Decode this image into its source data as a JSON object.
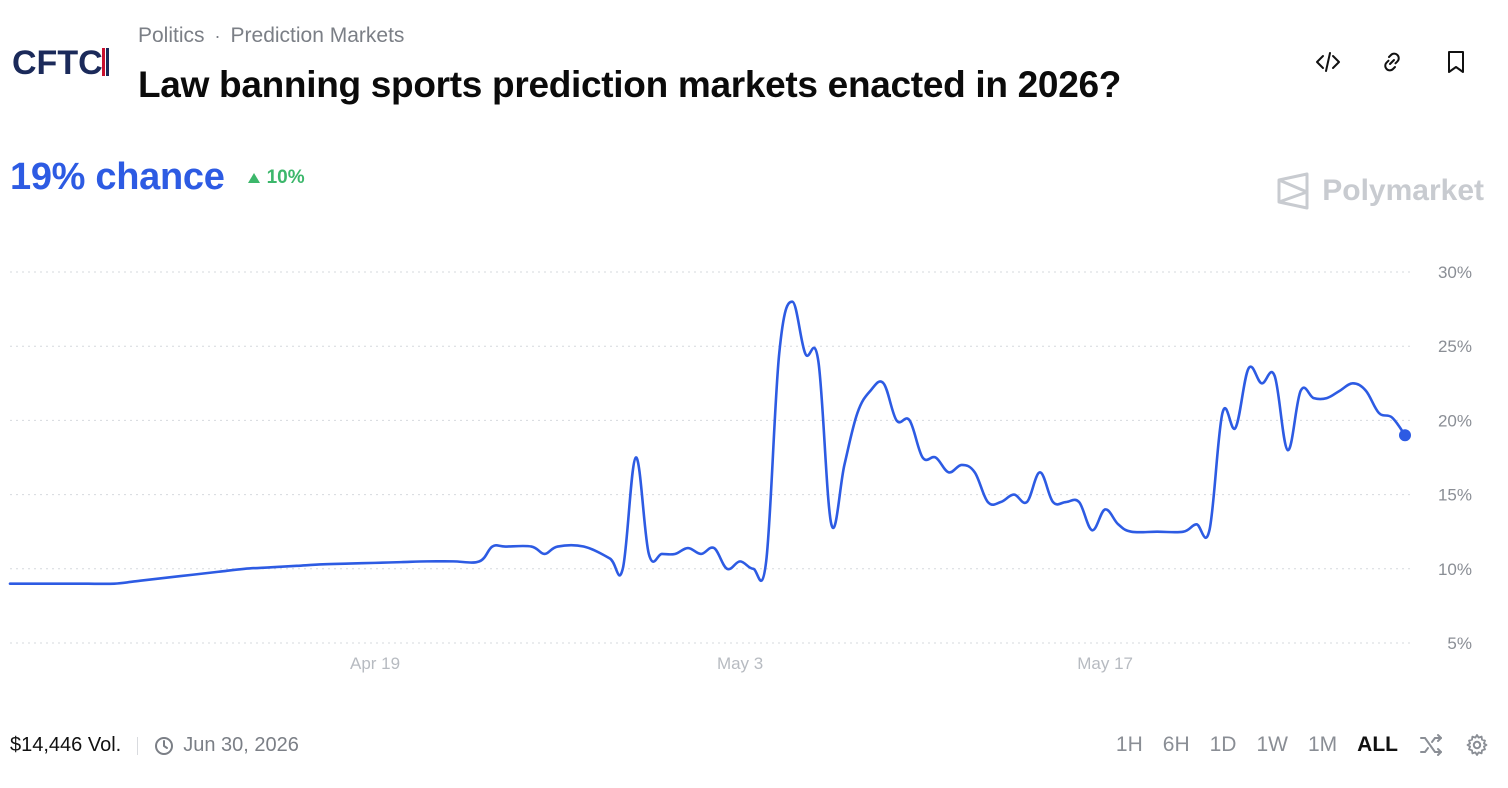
{
  "header": {
    "logo_text": "CFTC",
    "breadcrumb": [
      "Politics",
      "Prediction Markets"
    ],
    "breadcrumb_separator": "·",
    "title": "Law banning sports prediction markets enacted in 2026?",
    "actions": [
      {
        "icon": "embed-code-icon"
      },
      {
        "icon": "link-icon"
      },
      {
        "icon": "bookmark-icon"
      }
    ]
  },
  "summary": {
    "chance_text": "19% chance",
    "delta_text": "10%",
    "delta_direction": "up",
    "accent_color": "#2d5be3",
    "delta_color": "#3cb76b"
  },
  "brand": {
    "name": "Polymarket",
    "icon": "polymarket-logo-icon"
  },
  "chart_data": {
    "type": "line",
    "series": [
      {
        "color": "#2d5be3",
        "values": [
          [
            0,
            9.0
          ],
          [
            1,
            9.0
          ],
          [
            2,
            9.0
          ],
          [
            3,
            9.0
          ],
          [
            4,
            9.0
          ],
          [
            5,
            9.2
          ],
          [
            6,
            9.4
          ],
          [
            7,
            9.6
          ],
          [
            8,
            9.8
          ],
          [
            9,
            10.0
          ],
          [
            10,
            10.1
          ],
          [
            11,
            10.2
          ],
          [
            12,
            10.3
          ],
          [
            13,
            10.35
          ],
          [
            14,
            10.4
          ],
          [
            15,
            10.45
          ],
          [
            16,
            10.5
          ],
          [
            17,
            10.5
          ],
          [
            18,
            10.5
          ],
          [
            18.5,
            11.5
          ],
          [
            19,
            11.5
          ],
          [
            20,
            11.5
          ],
          [
            20.5,
            11.0
          ],
          [
            21,
            11.5
          ],
          [
            22,
            11.5
          ],
          [
            23,
            10.7
          ],
          [
            23.5,
            10.0
          ],
          [
            24,
            17.5
          ],
          [
            24.5,
            11.0
          ],
          [
            25,
            11.0
          ],
          [
            25.5,
            11.0
          ],
          [
            26,
            11.4
          ],
          [
            26.5,
            11.0
          ],
          [
            27,
            11.4
          ],
          [
            27.5,
            10.0
          ],
          [
            28,
            10.5
          ],
          [
            28.5,
            10.0
          ],
          [
            29,
            10.5
          ],
          [
            29.5,
            24.5
          ],
          [
            30,
            28.0
          ],
          [
            30.5,
            24.5
          ],
          [
            31,
            24.0
          ],
          [
            31.5,
            13.0
          ],
          [
            32,
            17.0
          ],
          [
            32.5,
            20.5
          ],
          [
            33,
            22.0
          ],
          [
            33.5,
            22.5
          ],
          [
            34,
            20.0
          ],
          [
            34.5,
            20.0
          ],
          [
            35,
            17.5
          ],
          [
            35.5,
            17.5
          ],
          [
            36,
            16.5
          ],
          [
            36.5,
            17.0
          ],
          [
            37,
            16.5
          ],
          [
            37.5,
            14.5
          ],
          [
            38,
            14.5
          ],
          [
            38.5,
            15.0
          ],
          [
            39,
            14.5
          ],
          [
            39.5,
            16.5
          ],
          [
            40,
            14.5
          ],
          [
            40.5,
            14.5
          ],
          [
            41,
            14.5
          ],
          [
            41.5,
            12.6
          ],
          [
            42,
            14.0
          ],
          [
            42.5,
            13.0
          ],
          [
            43,
            12.5
          ],
          [
            44,
            12.5
          ],
          [
            45,
            12.5
          ],
          [
            45.5,
            13.0
          ],
          [
            46,
            12.6
          ],
          [
            46.5,
            20.5
          ],
          [
            47,
            19.5
          ],
          [
            47.5,
            23.5
          ],
          [
            48,
            22.5
          ],
          [
            48.5,
            23.0
          ],
          [
            49,
            18.0
          ],
          [
            49.5,
            22.0
          ],
          [
            50,
            21.5
          ],
          [
            50.5,
            21.5
          ],
          [
            51,
            22.0
          ],
          [
            51.5,
            22.5
          ],
          [
            52,
            22.0
          ],
          [
            52.5,
            20.5
          ],
          [
            53,
            20.2
          ],
          [
            53.5,
            19.0
          ]
        ]
      }
    ],
    "x_ticks": [
      "Apr 19",
      "May 3",
      "May 17"
    ],
    "x_tick_positions": [
      14,
      28,
      42
    ],
    "y_ticks": [
      "30%",
      "25%",
      "20%",
      "15%",
      "10%",
      "5%"
    ],
    "y_tick_values": [
      30,
      25,
      20,
      15,
      10,
      5
    ],
    "ylim": [
      5,
      30
    ],
    "xlim": [
      0,
      53.5
    ],
    "grid": true,
    "last_point_marker": true
  },
  "footer": {
    "volume_text": "$14,446 Vol.",
    "end_date": "Jun 30, 2026",
    "ranges": [
      "1H",
      "6H",
      "1D",
      "1W",
      "1M",
      "ALL"
    ],
    "active_range": "ALL",
    "tools": [
      {
        "icon": "shuffle-icon"
      },
      {
        "icon": "settings-gear-icon"
      }
    ]
  }
}
